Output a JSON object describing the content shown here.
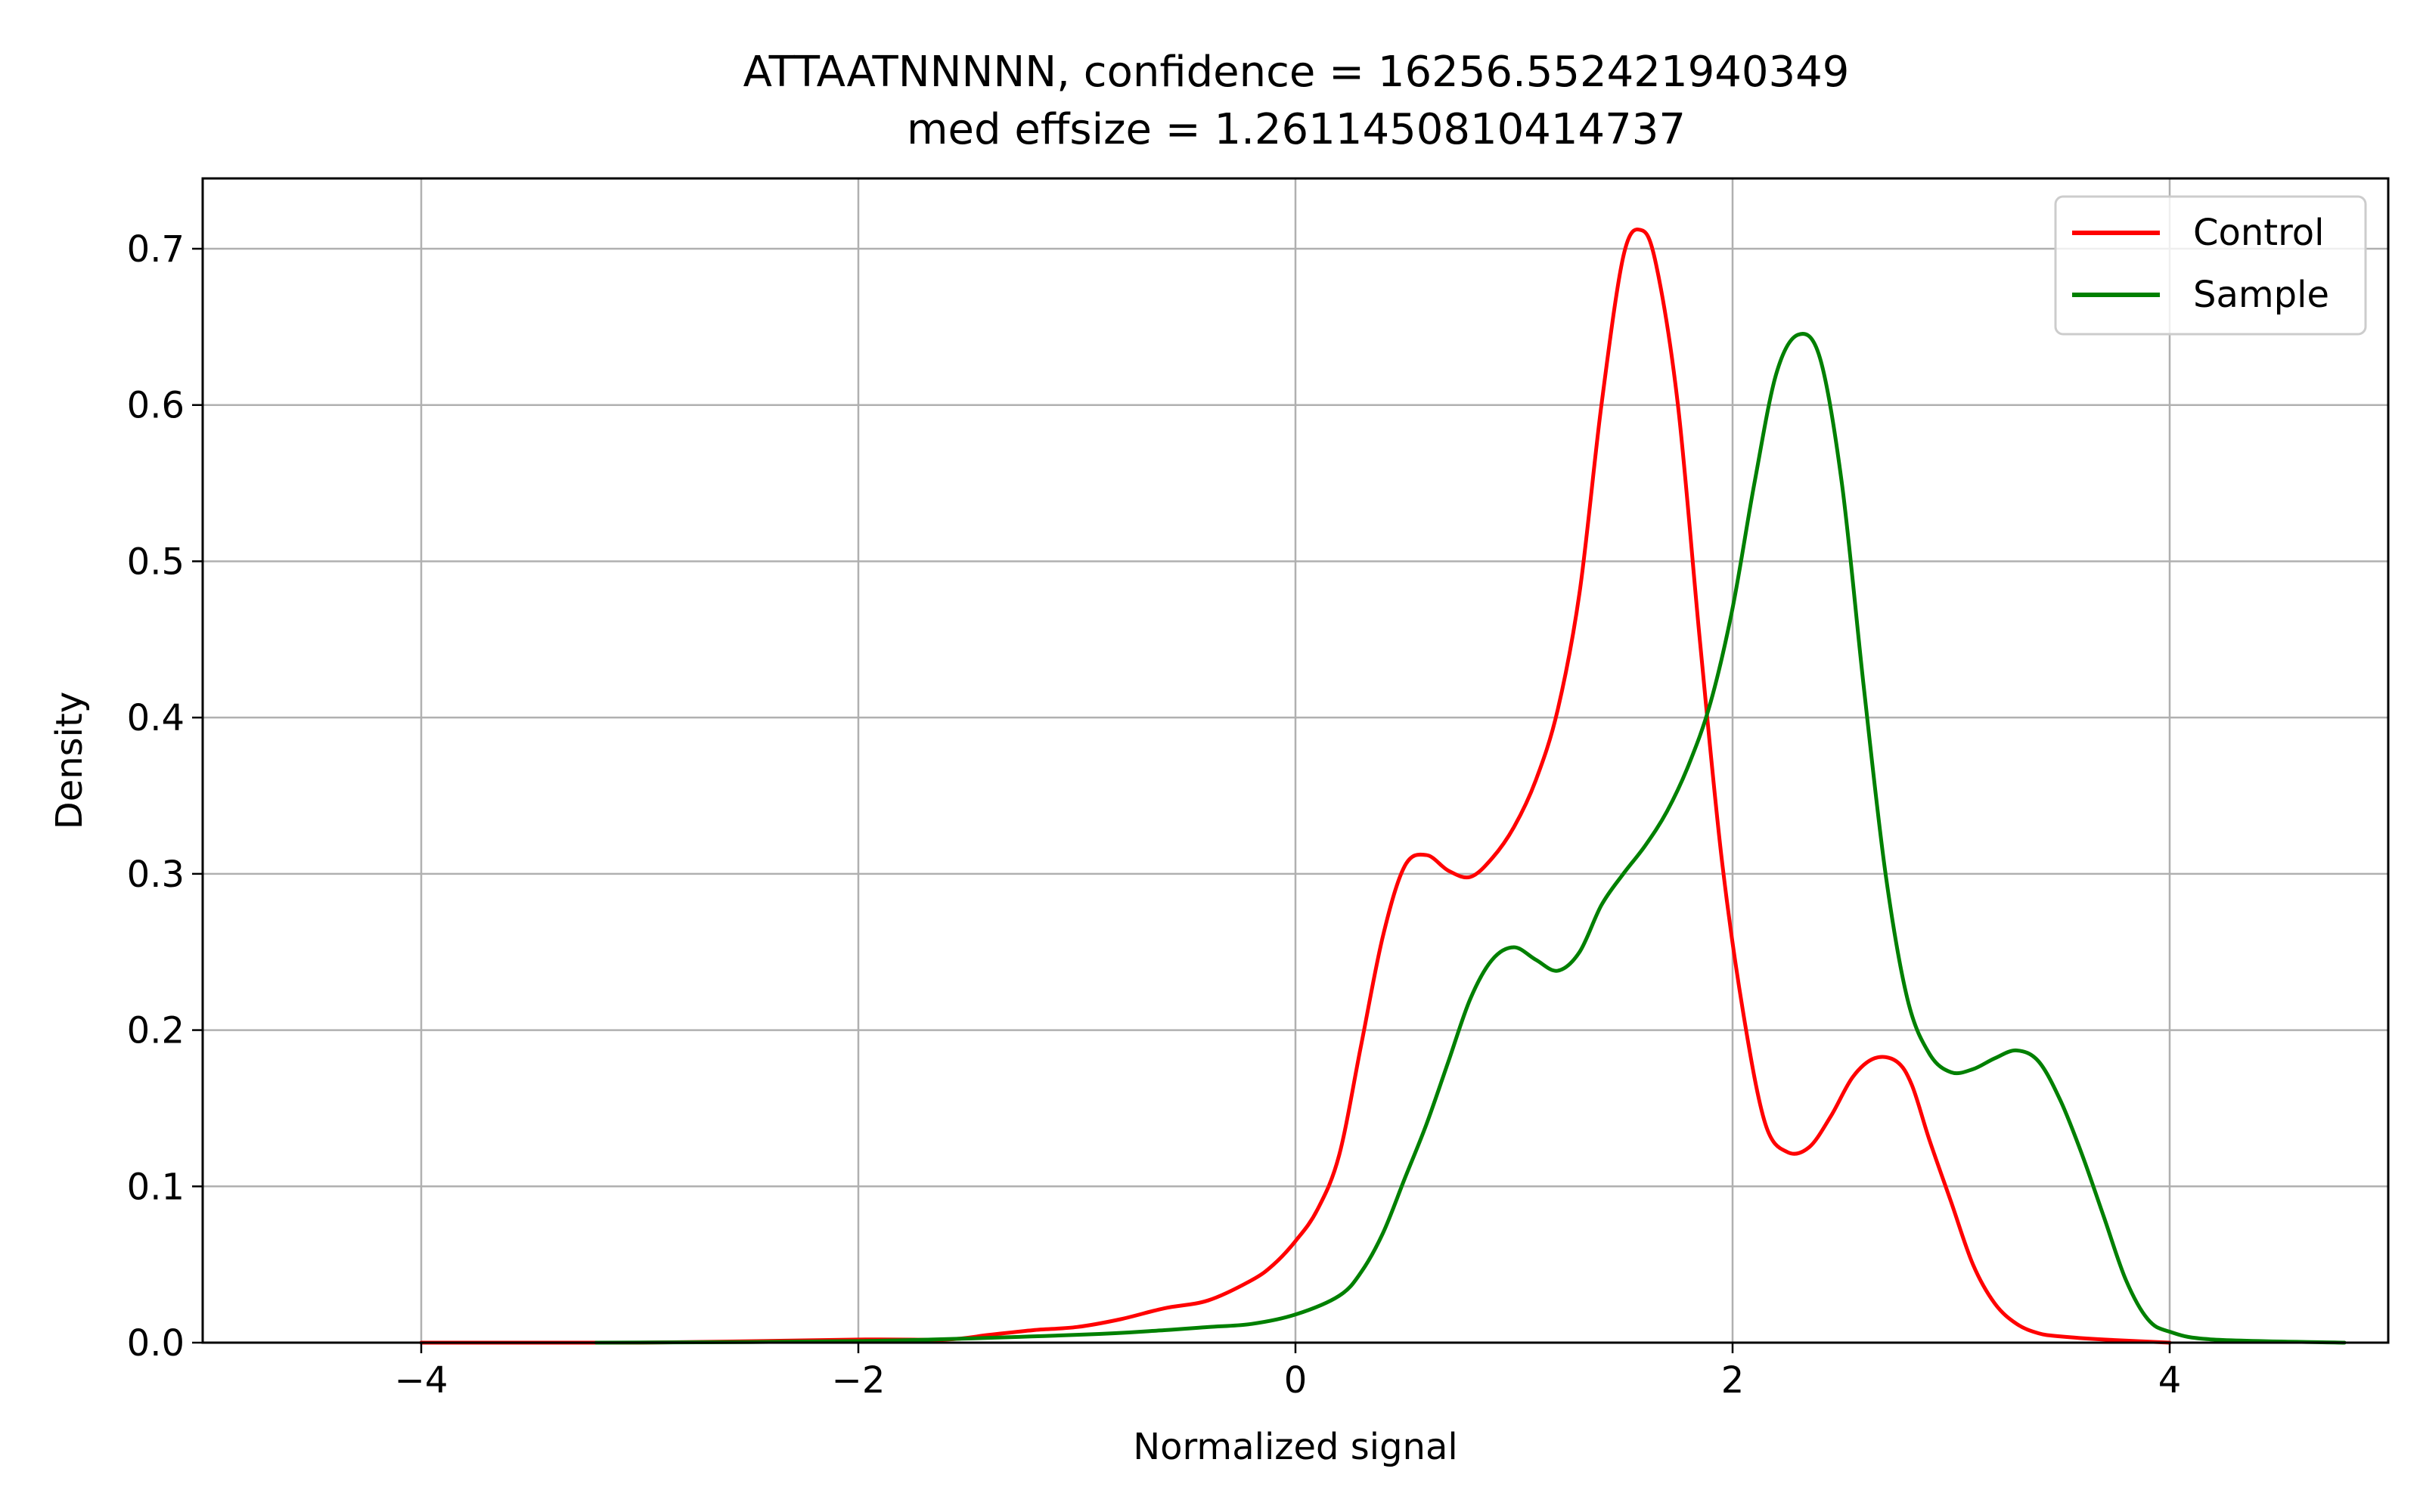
{
  "chart_data": {
    "type": "line",
    "title_line1": "ATTAATNNNNN, confidence = 16256.552421940349",
    "title_line2": "med effsize = 1.2611450810414737",
    "xlabel": "Normalized signal",
    "ylabel": "Density",
    "xlim": [
      -5.0,
      5.0
    ],
    "ylim": [
      0.0,
      0.745
    ],
    "xticks": [
      -4,
      -2,
      0,
      2,
      4
    ],
    "xtick_labels": [
      "−4",
      "−2",
      "0",
      "2",
      "4"
    ],
    "yticks": [
      0.0,
      0.1,
      0.2,
      0.3,
      0.4,
      0.5,
      0.6,
      0.7
    ],
    "ytick_labels": [
      "0.0",
      "0.1",
      "0.2",
      "0.3",
      "0.4",
      "0.5",
      "0.6",
      "0.7"
    ],
    "grid": true,
    "legend_position": "top-right",
    "series": [
      {
        "name": "Control",
        "color": "#ff0000",
        "x": [
          -4.0,
          -3.0,
          -2.0,
          -1.6,
          -1.4,
          -1.2,
          -1.0,
          -0.8,
          -0.6,
          -0.4,
          -0.2,
          -0.1,
          0.0,
          0.1,
          0.2,
          0.3,
          0.4,
          0.5,
          0.6,
          0.7,
          0.8,
          0.9,
          1.0,
          1.1,
          1.2,
          1.3,
          1.4,
          1.5,
          1.58,
          1.65,
          1.75,
          1.85,
          1.95,
          2.05,
          2.15,
          2.25,
          2.35,
          2.45,
          2.55,
          2.65,
          2.75,
          2.82,
          2.9,
          3.0,
          3.1,
          3.2,
          3.3,
          3.4,
          3.5,
          3.7,
          4.0
        ],
        "y": [
          0.0,
          0.0,
          0.002,
          0.002,
          0.005,
          0.008,
          0.01,
          0.015,
          0.022,
          0.027,
          0.04,
          0.05,
          0.065,
          0.085,
          0.12,
          0.19,
          0.26,
          0.305,
          0.312,
          0.302,
          0.298,
          0.31,
          0.33,
          0.36,
          0.405,
          0.48,
          0.6,
          0.695,
          0.712,
          0.69,
          0.6,
          0.45,
          0.31,
          0.21,
          0.14,
          0.122,
          0.125,
          0.145,
          0.17,
          0.182,
          0.18,
          0.165,
          0.13,
          0.09,
          0.05,
          0.025,
          0.012,
          0.006,
          0.004,
          0.002,
          0.0
        ]
      },
      {
        "name": "Sample",
        "color": "#008000",
        "x": [
          -3.2,
          -2.0,
          -1.0,
          -0.6,
          -0.4,
          -0.2,
          0.0,
          0.2,
          0.3,
          0.4,
          0.5,
          0.6,
          0.7,
          0.8,
          0.9,
          1.0,
          1.1,
          1.2,
          1.3,
          1.4,
          1.5,
          1.6,
          1.7,
          1.8,
          1.9,
          2.0,
          2.1,
          2.2,
          2.3,
          2.4,
          2.5,
          2.6,
          2.7,
          2.8,
          2.9,
          3.0,
          3.1,
          3.2,
          3.3,
          3.4,
          3.5,
          3.6,
          3.7,
          3.8,
          3.9,
          4.0,
          4.2,
          4.8
        ],
        "y": [
          0.0,
          0.001,
          0.005,
          0.008,
          0.01,
          0.012,
          0.018,
          0.03,
          0.045,
          0.07,
          0.105,
          0.14,
          0.18,
          0.22,
          0.245,
          0.253,
          0.245,
          0.238,
          0.25,
          0.28,
          0.3,
          0.318,
          0.34,
          0.37,
          0.41,
          0.47,
          0.55,
          0.62,
          0.645,
          0.63,
          0.55,
          0.42,
          0.3,
          0.22,
          0.185,
          0.173,
          0.175,
          0.182,
          0.187,
          0.18,
          0.155,
          0.12,
          0.08,
          0.04,
          0.015,
          0.007,
          0.002,
          0.0
        ]
      }
    ]
  }
}
